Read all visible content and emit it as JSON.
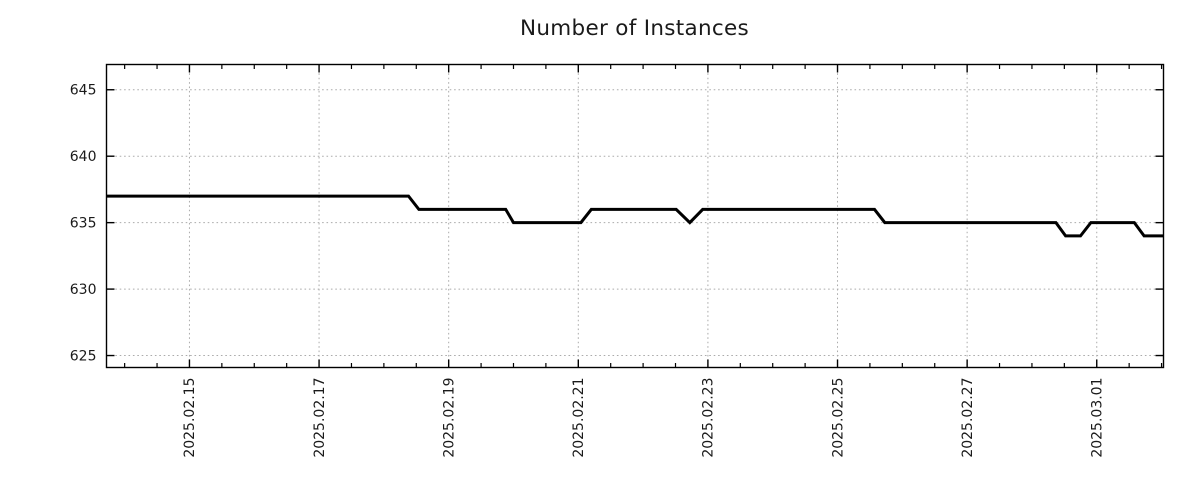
{
  "chart_data": {
    "type": "line",
    "title": "Number of Instances",
    "x_axis": {
      "unit": "date",
      "epoch_label": "2025.02.15",
      "range_days": [
        -1.28,
        15.03
      ],
      "major_ticks": [
        {
          "day": 0,
          "label": "2025.02.15"
        },
        {
          "day": 2,
          "label": "2025.02.17"
        },
        {
          "day": 4,
          "label": "2025.02.19"
        },
        {
          "day": 6,
          "label": "2025.02.21"
        },
        {
          "day": 8,
          "label": "2025.02.23"
        },
        {
          "day": 10,
          "label": "2025.02.25"
        },
        {
          "day": 12,
          "label": "2025.02.27"
        },
        {
          "day": 14,
          "label": "2025.03.01"
        }
      ],
      "minor_tick_step_days": 0.5
    },
    "y_axis": {
      "range": [
        624.1,
        646.9
      ],
      "ticks": [
        625,
        630,
        635,
        640,
        645
      ]
    },
    "grid": "dotted",
    "legend": "none",
    "series": [
      {
        "name": "instances",
        "color": "#000000",
        "points": [
          [
            -1.28,
            637
          ],
          [
            3.38,
            637
          ],
          [
            3.54,
            636
          ],
          [
            4.88,
            636
          ],
          [
            5.0,
            635
          ],
          [
            6.04,
            635
          ],
          [
            6.2,
            636
          ],
          [
            7.51,
            636
          ],
          [
            7.72,
            635
          ],
          [
            7.92,
            636
          ],
          [
            10.57,
            636
          ],
          [
            10.73,
            635
          ],
          [
            13.37,
            635
          ],
          [
            13.52,
            634
          ],
          [
            13.75,
            634
          ],
          [
            13.91,
            635
          ],
          [
            14.58,
            635
          ],
          [
            14.73,
            634
          ],
          [
            15.03,
            634
          ]
        ]
      }
    ]
  },
  "colors": {
    "line": "#000000",
    "grid": "#ababab",
    "axis": "#000000",
    "text": "#1a1a1a",
    "background": "#ffffff"
  }
}
